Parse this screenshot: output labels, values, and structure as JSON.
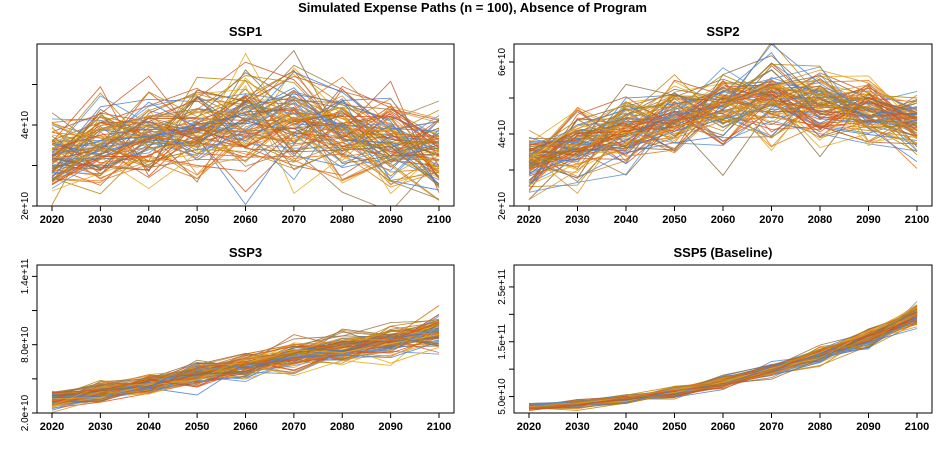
{
  "figure_title": "Simulated Expense Paths (n = 100), Absence of Program",
  "chart_data": [
    {
      "type": "line",
      "title": "SSP1",
      "x": [
        2020,
        2030,
        2040,
        2050,
        2060,
        2070,
        2080,
        2090,
        2100
      ],
      "x_tick_labels": [
        "2020",
        "2030",
        "2040",
        "2050",
        "2060",
        "2070",
        "2080",
        "2090",
        "2100"
      ],
      "ylim": [
        20000000000.0,
        60000000000.0
      ],
      "y_ticks": [
        20000000000.0,
        30000000000.0,
        40000000000.0,
        50000000000.0
      ],
      "y_tick_labels": [
        "2e+10",
        "",
        "4e+10",
        ""
      ],
      "n_paths": 100,
      "median_path": [
        32000000000.0,
        35000000000.0,
        37000000000.0,
        39000000000.0,
        40000000000.0,
        41000000000.0,
        38000000000.0,
        36000000000.0,
        33000000000.0
      ],
      "spread": [
        5000000000.0,
        6000000000.0,
        6000000000.0,
        7000000000.0,
        7000000000.0,
        7500000000.0,
        6500000000.0,
        6000000000.0,
        6000000000.0
      ]
    },
    {
      "type": "line",
      "title": "SSP2",
      "x": [
        2020,
        2030,
        2040,
        2050,
        2060,
        2070,
        2080,
        2090,
        2100
      ],
      "x_tick_labels": [
        "2020",
        "2030",
        "2040",
        "2050",
        "2060",
        "2070",
        "2080",
        "2090",
        "2100"
      ],
      "ylim": [
        20000000000.0,
        65000000000.0
      ],
      "y_ticks": [
        20000000000.0,
        30000000000.0,
        40000000000.0,
        50000000000.0,
        60000000000.0
      ],
      "y_tick_labels": [
        "2e+10",
        "",
        "4e+10",
        "",
        "6e+10"
      ],
      "n_paths": 100,
      "median_path": [
        32000000000.0,
        36000000000.0,
        40000000000.0,
        44000000000.0,
        47000000000.0,
        50000000000.0,
        48000000000.0,
        46000000000.0,
        43000000000.0
      ],
      "spread": [
        5000000000.0,
        5500000000.0,
        5500000000.0,
        6000000000.0,
        6000000000.0,
        6500000000.0,
        5500000000.0,
        5000000000.0,
        4500000000.0
      ]
    },
    {
      "type": "line",
      "title": "SSP3",
      "x": [
        2020,
        2030,
        2040,
        2050,
        2060,
        2070,
        2080,
        2090,
        2100
      ],
      "x_tick_labels": [
        "2020",
        "2030",
        "2040",
        "2050",
        "2060",
        "2070",
        "2080",
        "2090",
        "2100"
      ],
      "ylim": [
        20000000000.0,
        150000000000.0
      ],
      "y_ticks": [
        20000000000.0,
        50000000000.0,
        80000000000.0,
        110000000000.0,
        140000000000.0
      ],
      "y_tick_labels": [
        "2.0e+10",
        "",
        "8.0e+10",
        "",
        "1.4e+11"
      ],
      "n_paths": 100,
      "median_path": [
        32000000000.0,
        38000000000.0,
        45000000000.0,
        53000000000.0,
        62000000000.0,
        70000000000.0,
        76000000000.0,
        84000000000.0,
        92000000000.0
      ],
      "spread": [
        4000000000.0,
        4500000000.0,
        5000000000.0,
        5500000000.0,
        6000000000.0,
        6500000000.0,
        7000000000.0,
        7500000000.0,
        8000000000.0
      ]
    },
    {
      "type": "line",
      "title": "SSP5 (Baseline)",
      "x": [
        2020,
        2030,
        2040,
        2050,
        2060,
        2070,
        2080,
        2090,
        2100
      ],
      "x_tick_labels": [
        "2020",
        "2030",
        "2040",
        "2050",
        "2060",
        "2070",
        "2080",
        "2090",
        "2100"
      ],
      "ylim": [
        20000000000.0,
        290000000000.0
      ],
      "y_ticks": [
        50000000000.0,
        100000000000.0,
        150000000000.0,
        200000000000.0,
        250000000000.0
      ],
      "y_tick_labels": [
        "5.0e+10",
        "",
        "1.5e+11",
        "",
        "2.5e+11"
      ],
      "n_paths": 100,
      "median_path": [
        32000000000.0,
        36000000000.0,
        45000000000.0,
        58000000000.0,
        76000000000.0,
        96000000000.0,
        125000000000.0,
        158000000000.0,
        200000000000.0
      ],
      "spread": [
        3000000000.0,
        3500000000.0,
        4000000000.0,
        5000000000.0,
        6000000000.0,
        7000000000.0,
        8000000000.0,
        9000000000.0,
        10000000000.0
      ]
    }
  ],
  "palette": [
    "#5b8fd6",
    "#e07a1f",
    "#c65a2a",
    "#e6a817",
    "#8c6d3f",
    "#4a7fcf",
    "#d9922f",
    "#b8860b",
    "#9e7a4e",
    "#d9541e"
  ]
}
